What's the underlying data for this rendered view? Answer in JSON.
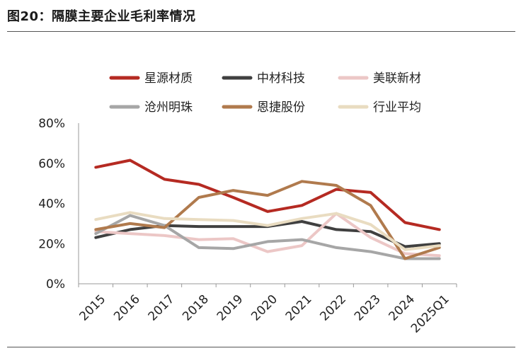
{
  "header": {
    "title": "图20：隔膜主要企业毛利率情况"
  },
  "chart_data": {
    "type": "line",
    "title": "",
    "xlabel": "",
    "ylabel": "",
    "x": [
      "2015",
      "2016",
      "2017",
      "2018",
      "2019",
      "2020",
      "2021",
      "2022",
      "2023",
      "2024",
      "2025Q1"
    ],
    "ylim": [
      0,
      80
    ],
    "yticks": [
      "0%",
      "20%",
      "40%",
      "60%",
      "80%"
    ],
    "grid": false,
    "legend_position": "top",
    "series": [
      {
        "name": "星源材质",
        "color": "#b52a22",
        "values": [
          58,
          61.5,
          52,
          49.5,
          43,
          36,
          39,
          47,
          45.5,
          30.5,
          27
        ]
      },
      {
        "name": "中材科技",
        "color": "#404040",
        "values": [
          23,
          27,
          29,
          28.5,
          28.5,
          28.5,
          31,
          27,
          26,
          18.5,
          20
        ]
      },
      {
        "name": "美联新材",
        "color": "#ecc7c6",
        "values": [
          26,
          25,
          24,
          22,
          22.5,
          16,
          19,
          35,
          23,
          15,
          14
        ]
      },
      {
        "name": "沧州明珠",
        "color": "#a6a6a6",
        "values": [
          25,
          34,
          29,
          18,
          17.5,
          21,
          22,
          18,
          16,
          12.5,
          12.5
        ]
      },
      {
        "name": "恩捷股份",
        "color": "#b07a4d",
        "values": [
          27,
          30,
          28,
          43,
          46.5,
          44,
          51,
          49,
          39,
          12.5,
          18
        ]
      },
      {
        "name": "行业平均",
        "color": "#e9dcc1",
        "values": [
          32,
          35.5,
          32.5,
          32,
          31.5,
          29,
          32.5,
          35,
          29.5,
          17,
          19
        ]
      }
    ]
  }
}
